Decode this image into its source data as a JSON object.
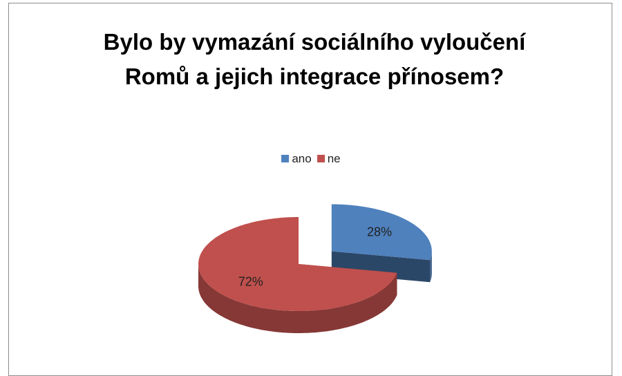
{
  "chart_data": {
    "type": "pie",
    "title": "Bylo by vymazání sociálního vyloučení Romů a jejich integrace přínosem?",
    "categories": [
      "ano",
      "ne"
    ],
    "values": [
      28,
      72
    ],
    "value_labels": [
      "28%",
      "72%"
    ],
    "colors": [
      "#4f81bd",
      "#c0504d"
    ],
    "exploded": [
      true,
      false
    ],
    "legend": "top"
  }
}
